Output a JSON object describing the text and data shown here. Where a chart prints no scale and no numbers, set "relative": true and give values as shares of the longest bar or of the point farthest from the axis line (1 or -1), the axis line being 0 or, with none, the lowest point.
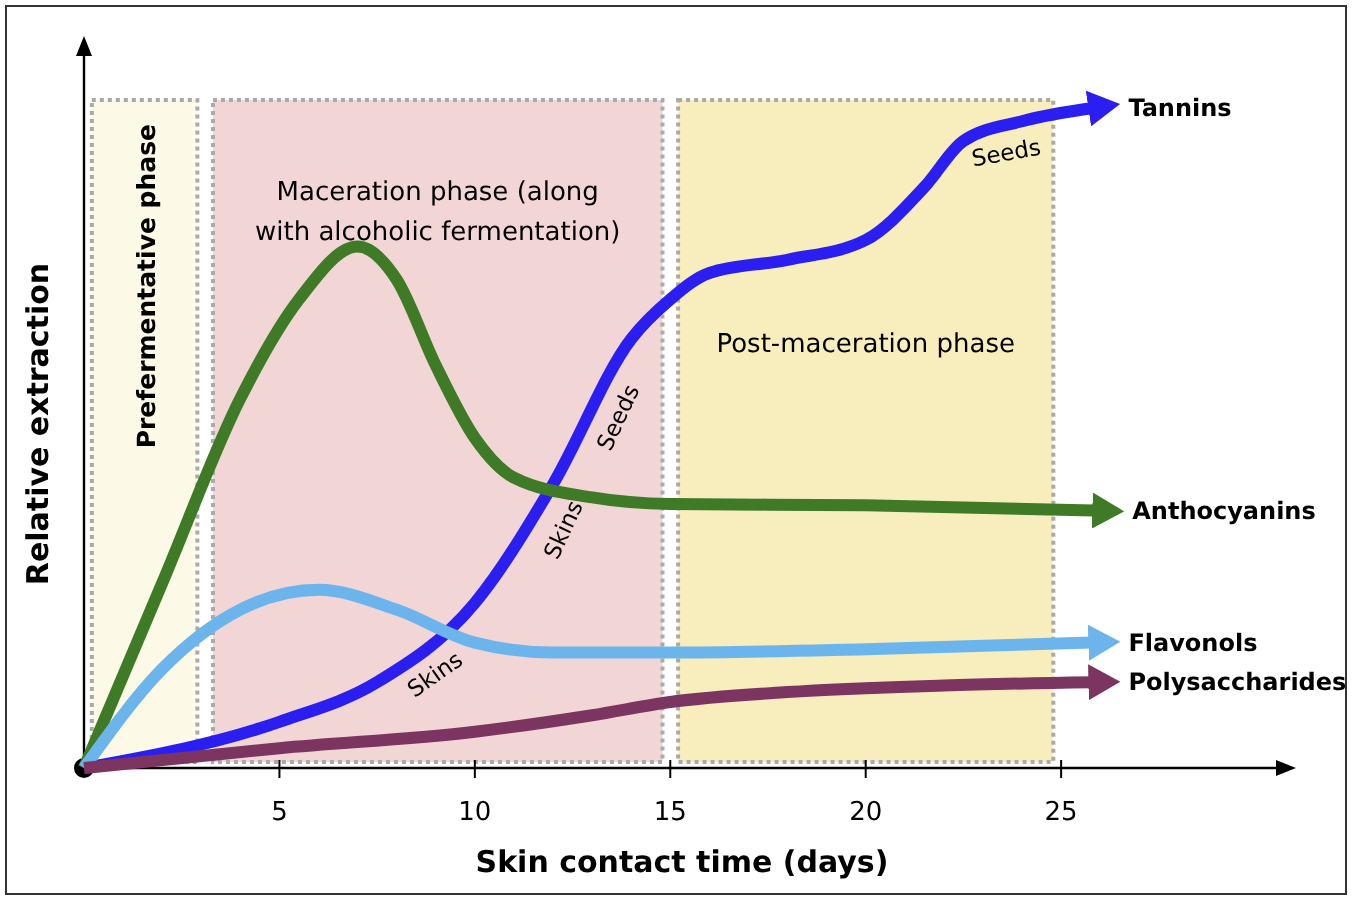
{
  "chart_data": {
    "type": "line",
    "relative": true,
    "xlabel": "Skin contact time (days)",
    "ylabel": "Relative extraction",
    "xlim": [
      0,
      30.6
    ],
    "xticks": [
      5,
      10,
      15,
      20,
      25
    ],
    "legend": "right",
    "marker": "none",
    "line_style": "solid",
    "series": [
      {
        "name": "Tannins",
        "color": "#2a1ff0",
        "x": [
          0,
          5,
          7.5,
          10,
          12,
          14,
          15,
          16,
          18,
          20,
          21.5,
          22.5,
          24,
          25.8
        ],
        "values": [
          0,
          0.07,
          0.13,
          0.25,
          0.43,
          0.65,
          0.71,
          0.75,
          0.77,
          0.8,
          0.88,
          0.95,
          0.98,
          1
        ]
      },
      {
        "name": "Anthocyanins",
        "color": "#3f7a26",
        "x": [
          0,
          2,
          4,
          5.5,
          7,
          8,
          9,
          10,
          11,
          13,
          15,
          20,
          25.9
        ],
        "values": [
          0,
          0.28,
          0.56,
          0.71,
          0.79,
          0.74,
          0.61,
          0.5,
          0.44,
          0.41,
          0.4,
          0.398,
          0.39
        ]
      },
      {
        "name": "Flavonols",
        "color": "#6cb4ec",
        "x": [
          0,
          2,
          4,
          6,
          8,
          10,
          12,
          15,
          20,
          25.8
        ],
        "values": [
          0,
          0.15,
          0.24,
          0.27,
          0.24,
          0.19,
          0.175,
          0.175,
          0.18,
          0.19
        ]
      },
      {
        "name": "Polysaccharides",
        "color": "#7b3560",
        "x": [
          0,
          5,
          10,
          13,
          15,
          18,
          22,
          25.8
        ],
        "values": [
          0,
          0.03,
          0.055,
          0.08,
          0.1,
          0.115,
          0.125,
          0.13
        ]
      }
    ],
    "bands": [
      {
        "axis": "x",
        "from": 0.2,
        "to": 2.9,
        "label": "Prefermentative phase",
        "color": "#fcfae6"
      },
      {
        "axis": "x",
        "from": 3.3,
        "to": 14.8,
        "label": "Maceration phase (along with alcoholic fermentation)",
        "color": "#f2d6d6"
      },
      {
        "axis": "x",
        "from": 15.2,
        "to": 24.8,
        "label": "Post-maceration phase",
        "color": "#f7edbd"
      }
    ],
    "annotations": [
      "Skins",
      "Skins",
      "Seeds",
      "Seeds"
    ]
  }
}
